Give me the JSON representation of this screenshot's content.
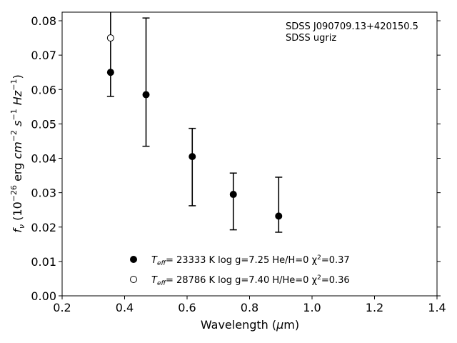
{
  "chart_data": {
    "type": "scatter",
    "annotation_lines": [
      "SDSS J090709.13+420150.5",
      "SDSS ugriz"
    ],
    "xlabel": "Wavelength (μm)",
    "ylabel": "f_ν (10^-26 erg cm^-2 s^-1 Hz^-1)",
    "xlim": [
      0.2,
      1.4
    ],
    "ylim": [
      0.0,
      0.0825
    ],
    "xticks": [
      "0.2",
      "0.4",
      "0.6",
      "0.8",
      "1.0",
      "1.2",
      "1.4"
    ],
    "yticks": [
      "0.00",
      "0.01",
      "0.02",
      "0.03",
      "0.04",
      "0.05",
      "0.06",
      "0.07",
      "0.08"
    ],
    "grid": false,
    "observed": {
      "x": [
        0.3551,
        0.4686,
        0.6166,
        0.748,
        0.8932
      ],
      "y": [
        0.065,
        0.0585,
        0.0405,
        0.0295,
        0.0232
      ],
      "err_low": [
        0.058,
        0.0435,
        0.0262,
        0.0192,
        0.0185
      ],
      "err_high": [
        0.0825,
        0.0808,
        0.0487,
        0.0357,
        0.0345
      ]
    },
    "series": [
      {
        "name": "Teff= 23333 K  log g=7.25  He/H=0  χ²=0.37",
        "marker": "filled-circle",
        "x": [
          0.3551,
          0.4686,
          0.6166,
          0.748,
          0.8932
        ],
        "y": [
          0.065,
          0.0585,
          0.0405,
          0.0295,
          0.0232
        ]
      },
      {
        "name": "Teff= 28786 K  log g=7.40  H/He=0  χ²=0.36",
        "marker": "open-circle",
        "x": [
          0.3551
        ],
        "y": [
          0.075
        ]
      }
    ],
    "legend_placement": "bottom-center",
    "colors": {
      "marker": "#000000",
      "open_fill": "#ffffff"
    }
  },
  "legend": [
    {
      "teff_sym": "T",
      "teff_sub": "eff",
      "rest": "= 23333 K  log g=7.25  He/H=0  χ",
      "sup": "2",
      "tail": "=0.37"
    },
    {
      "teff_sym": "T",
      "teff_sub": "eff",
      "rest": "= 28786 K  log g=7.40  H/He=0  χ",
      "sup": "2",
      "tail": "=0.36"
    }
  ]
}
